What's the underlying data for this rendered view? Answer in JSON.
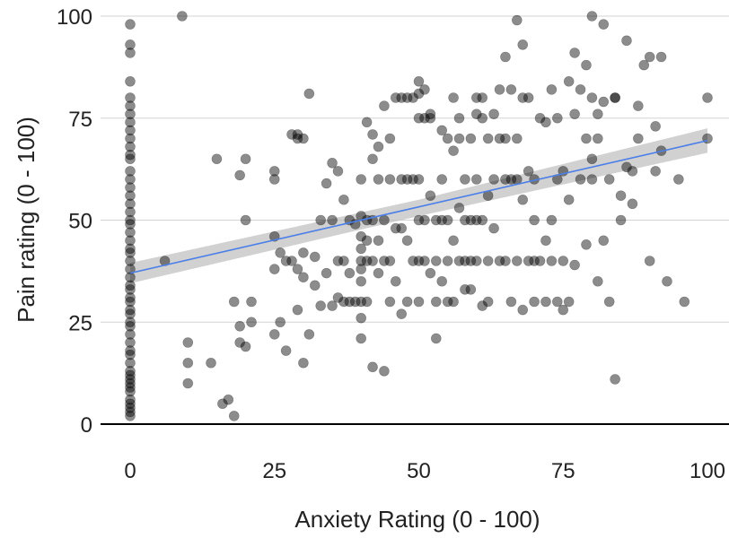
{
  "chart_data": {
    "type": "scatter",
    "title": "",
    "xlabel": "Anxiety Rating (0 - 100)",
    "ylabel": "Pain rating (0 - 100)",
    "xlim": [
      -3,
      102
    ],
    "ylim": [
      0,
      100
    ],
    "x_ticks": [
      0,
      25,
      50,
      75,
      100
    ],
    "x_tick_labels": [
      "0",
      "25",
      "50",
      "75",
      "100"
    ],
    "y_ticks": [
      0,
      25,
      50,
      75,
      100
    ],
    "y_tick_labels": [
      "0",
      "25",
      "50",
      "75",
      "100"
    ],
    "grid": "horizontal",
    "legend": "none",
    "colors": {
      "points": "#000000",
      "trend_line": "#4a7ee8",
      "confidence_band": "#bdbdbd",
      "gridline": "#d3d3d3",
      "axis": "#000000"
    },
    "trend_line": {
      "x": [
        0,
        100
      ],
      "y": [
        37,
        69.5
      ]
    },
    "confidence_band": {
      "x": [
        0,
        50,
        100
      ],
      "y_low": [
        34.5,
        51,
        66.5
      ],
      "y_high": [
        39.5,
        55,
        72.5
      ]
    },
    "series": [
      {
        "x": [
          0,
          0,
          0,
          0,
          0,
          0,
          0,
          0,
          0,
          0,
          0,
          0,
          0,
          0,
          0,
          0,
          0,
          0,
          0,
          0,
          0,
          0,
          0,
          0,
          0,
          0,
          0,
          0,
          0,
          0,
          0,
          0,
          0,
          0,
          0,
          0,
          0,
          0,
          0,
          0,
          0,
          0,
          0,
          0,
          0,
          0,
          0,
          0,
          0,
          0,
          0,
          0,
          6,
          9,
          10,
          10,
          10,
          14,
          15,
          16,
          17,
          18,
          18,
          19,
          19,
          19,
          20,
          20,
          20,
          21,
          21,
          25,
          25,
          25,
          25,
          25,
          26,
          26,
          27,
          27,
          28,
          28,
          29,
          29,
          29,
          29,
          30,
          30,
          30,
          30,
          31,
          31,
          32,
          32,
          33,
          33,
          34,
          34,
          35,
          35,
          35,
          36,
          36,
          36,
          37,
          37,
          37,
          38,
          38,
          38,
          39,
          39,
          40,
          40,
          40,
          40,
          40,
          40,
          40,
          40,
          40,
          40,
          41,
          41,
          41,
          41,
          41,
          42,
          42,
          42,
          42,
          42,
          43,
          43,
          43,
          43,
          44,
          44,
          44,
          44,
          45,
          45,
          45,
          45,
          46,
          46,
          46,
          47,
          47,
          47,
          47,
          48,
          48,
          48,
          48,
          49,
          49,
          49,
          50,
          50,
          50,
          50,
          50,
          50,
          50,
          51,
          51,
          51,
          51,
          52,
          52,
          52,
          52,
          53,
          53,
          53,
          53,
          54,
          54,
          54,
          54,
          55,
          55,
          55,
          55,
          56,
          56,
          56,
          56,
          57,
          57,
          57,
          57,
          58,
          58,
          58,
          58,
          59,
          59,
          59,
          59,
          60,
          60,
          60,
          60,
          60,
          61,
          61,
          61,
          61,
          62,
          62,
          62,
          62,
          63,
          63,
          63,
          64,
          64,
          64,
          65,
          65,
          65,
          65,
          66,
          66,
          66,
          67,
          67,
          67,
          67,
          68,
          68,
          68,
          68,
          69,
          69,
          69,
          70,
          70,
          70,
          70,
          71,
          71,
          72,
          72,
          72,
          73,
          73,
          73,
          74,
          74,
          74,
          75,
          75,
          75,
          76,
          76,
          76,
          77,
          77,
          77,
          78,
          78,
          79,
          79,
          79,
          80,
          80,
          80,
          80,
          81,
          81,
          81,
          82,
          82,
          82,
          83,
          83,
          84,
          84,
          84,
          85,
          85,
          86,
          86,
          87,
          87,
          88,
          88,
          89,
          90,
          90,
          91,
          91,
          92,
          92,
          93,
          95,
          96,
          100,
          100
        ],
        "y": [
          98,
          93,
          91,
          84,
          80,
          74,
          72,
          70,
          68,
          65,
          62,
          60,
          58,
          56,
          54,
          52,
          50,
          49,
          47,
          45,
          43,
          40,
          38,
          36,
          34,
          31,
          30,
          28,
          25,
          24,
          22,
          20,
          18,
          15,
          13,
          11,
          10,
          8,
          6,
          5,
          4,
          3,
          2,
          78,
          76,
          66,
          42,
          33,
          27,
          17,
          12,
          9,
          40,
          100,
          20,
          15,
          10,
          15,
          65,
          5,
          6,
          30,
          2,
          24,
          61,
          20,
          50,
          19,
          65,
          25,
          30,
          62,
          60,
          46,
          38,
          22,
          42,
          25,
          40,
          18,
          71,
          40,
          28,
          38,
          71,
          70,
          15,
          70,
          36,
          42,
          22,
          81,
          41,
          34,
          50,
          29,
          59,
          37,
          64,
          50,
          29,
          31,
          40,
          62,
          30,
          40,
          55,
          30,
          37,
          50,
          49,
          30,
          60,
          51,
          46,
          43,
          40,
          38,
          35,
          30,
          26,
          21,
          74,
          50,
          45,
          40,
          30,
          71,
          65,
          50,
          40,
          14,
          68,
          60,
          45,
          37,
          78,
          50,
          40,
          13,
          70,
          60,
          40,
          30,
          80,
          48,
          35,
          80,
          60,
          48,
          27,
          80,
          60,
          45,
          30,
          80,
          60,
          40,
          84,
          81,
          75,
          60,
          50,
          40,
          30,
          82,
          75,
          50,
          40,
          76,
          75,
          56,
          37,
          50,
          40,
          30,
          21,
          72,
          60,
          50,
          35,
          70,
          50,
          40,
          30,
          80,
          67,
          45,
          30,
          75,
          70,
          53,
          40,
          60,
          50,
          40,
          33,
          70,
          50,
          40,
          33,
          80,
          76,
          60,
          50,
          40,
          80,
          75,
          50,
          29,
          70,
          56,
          40,
          30,
          76,
          60,
          48,
          82,
          70,
          40,
          90,
          70,
          60,
          40,
          82,
          60,
          30,
          99,
          70,
          60,
          40,
          93,
          80,
          55,
          28,
          80,
          62,
          40,
          50,
          60,
          40,
          30,
          75,
          40,
          74,
          30,
          45,
          82,
          50,
          40,
          75,
          60,
          30,
          62,
          40,
          28,
          84,
          55,
          30,
          91,
          76,
          39,
          60,
          82,
          44,
          88,
          70,
          60,
          100,
          80,
          65,
          35,
          76,
          70,
          45,
          98,
          79,
          60,
          30,
          80,
          11,
          80,
          56,
          50,
          94,
          63,
          62,
          54,
          70,
          78,
          88,
          90,
          40,
          73,
          62,
          90,
          67,
          35,
          60,
          30,
          80,
          70
        ]
      }
    ]
  }
}
